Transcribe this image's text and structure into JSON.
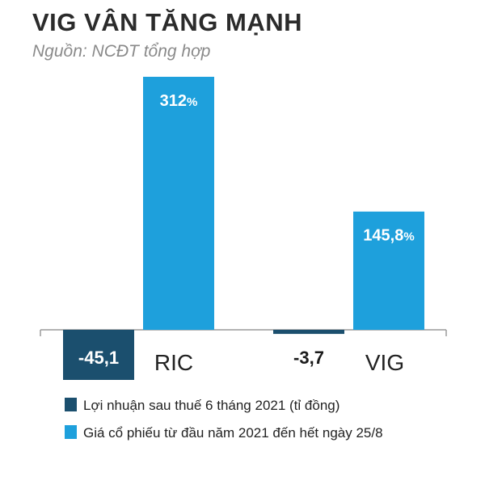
{
  "title": "VIG VÂN TĂNG MẠNH",
  "subtitle": "Nguồn: NCĐT tổng hợp",
  "chart_data": {
    "type": "bar",
    "categories": [
      "RIC",
      "VIG"
    ],
    "series": [
      {
        "name": "Lợi nhuận sau thuế 6 tháng 2021 (tỉ đồng)",
        "values": [
          -45.1,
          -3.7
        ],
        "labels": [
          "-45,1",
          "-3,7"
        ],
        "color": "#1b4f6e"
      },
      {
        "name": "Giá cổ phiếu từ đầu năm 2021 đến hết ngày 25/8",
        "values": [
          312,
          145.8
        ],
        "labels": [
          "312%",
          "145,8%"
        ],
        "color": "#1ea0dc"
      }
    ],
    "title": "VIG VÂN TĂNG MẠNH",
    "subtitle": "Nguồn: NCĐT tổng hợp",
    "legend_position": "bottom-left"
  },
  "legend": [
    {
      "label": "Lợi nhuận sau thuế 6 tháng 2021 (tỉ đồng)",
      "color": "#1b4f6e"
    },
    {
      "label": "Giá cổ phiếu từ đầu năm 2021 đến hết ngày 25/8",
      "color": "#1ea0dc"
    }
  ]
}
